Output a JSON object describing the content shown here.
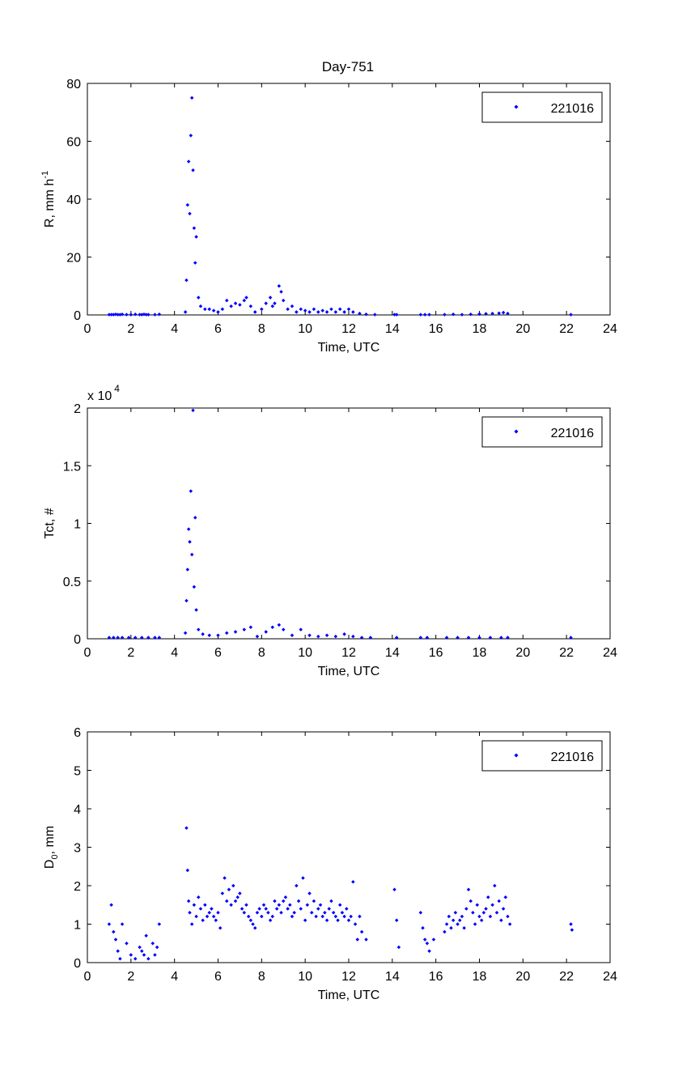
{
  "title": "Day-751",
  "marker_color": "#0000ff",
  "chart_data": [
    {
      "type": "scatter",
      "title": "Day-751",
      "xlabel": "Time, UTC",
      "ylabel_main": "R, mm h",
      "ylabel_sup": "-1",
      "xlim": [
        0,
        24
      ],
      "ylim": [
        0,
        80
      ],
      "xticks": [
        "0",
        "2",
        "4",
        "6",
        "8",
        "10",
        "12",
        "14",
        "16",
        "18",
        "20",
        "22",
        "24"
      ],
      "yticks": [
        "0",
        "20",
        "40",
        "60",
        "80"
      ],
      "legend": {
        "label": "221016",
        "position": "top-right"
      },
      "series": [
        {
          "name": "221016",
          "x": [
            1.0,
            1.1,
            1.2,
            1.3,
            1.4,
            1.5,
            1.6,
            1.8,
            2.0,
            2.2,
            2.4,
            2.5,
            2.6,
            2.7,
            2.8,
            3.1,
            3.3,
            4.5,
            4.55,
            4.6,
            4.65,
            4.7,
            4.75,
            4.8,
            4.85,
            4.9,
            4.95,
            5.0,
            5.1,
            5.2,
            5.4,
            5.6,
            5.8,
            6.0,
            6.2,
            6.4,
            6.6,
            6.8,
            7.0,
            7.2,
            7.3,
            7.5,
            7.7,
            8.0,
            8.2,
            8.4,
            8.5,
            8.6,
            8.8,
            8.9,
            9.0,
            9.2,
            9.4,
            9.6,
            9.8,
            10.0,
            10.2,
            10.4,
            10.6,
            10.8,
            11.0,
            11.2,
            11.4,
            11.6,
            11.8,
            12.0,
            12.2,
            12.5,
            12.8,
            13.2,
            14.1,
            14.2,
            15.3,
            15.5,
            15.7,
            16.4,
            16.8,
            17.2,
            17.6,
            18.0,
            18.3,
            18.6,
            18.9,
            19.1,
            19.3,
            22.2
          ],
          "y": [
            0.1,
            0.1,
            0.1,
            0.2,
            0.1,
            0.1,
            0.2,
            0.1,
            0.1,
            0.2,
            0.1,
            0.1,
            0.2,
            0.1,
            0.1,
            0.1,
            0.2,
            1.0,
            12.0,
            38.0,
            53.0,
            35.0,
            62.0,
            75.0,
            50.0,
            30.0,
            18.0,
            27.0,
            6.0,
            3.0,
            2.0,
            2.0,
            1.5,
            1.0,
            2.0,
            5.0,
            3.0,
            4.0,
            3.5,
            5.0,
            6.0,
            3.0,
            1.0,
            2.0,
            4.0,
            6.0,
            3.0,
            4.0,
            10.0,
            8.0,
            5.0,
            2.0,
            3.0,
            1.0,
            2.0,
            1.5,
            1.0,
            2.0,
            1.0,
            1.5,
            1.0,
            2.0,
            1.0,
            2.0,
            1.0,
            2.0,
            1.0,
            0.5,
            0.2,
            0.1,
            0.1,
            0.1,
            0.1,
            0.1,
            0.1,
            0.1,
            0.2,
            0.1,
            0.2,
            0.3,
            0.4,
            0.5,
            0.6,
            0.8,
            0.5,
            0.1
          ]
        }
      ]
    },
    {
      "type": "scatter",
      "exponent_label": "x 10",
      "exponent_power": "4",
      "xlabel": "Time, UTC",
      "ylabel": "Tct, #",
      "xlim": [
        0,
        24
      ],
      "ylim": [
        0,
        2
      ],
      "xticks": [
        "0",
        "2",
        "4",
        "6",
        "8",
        "10",
        "12",
        "14",
        "16",
        "18",
        "20",
        "22",
        "24"
      ],
      "yticks": [
        "0",
        "0.5",
        "1",
        "1.5",
        "2"
      ],
      "legend": {
        "label": "221016",
        "position": "top-right"
      },
      "series": [
        {
          "name": "221016",
          "x": [
            1.0,
            1.2,
            1.4,
            1.6,
            1.9,
            2.2,
            2.5,
            2.8,
            3.1,
            3.3,
            4.5,
            4.55,
            4.6,
            4.65,
            4.7,
            4.75,
            4.8,
            4.85,
            4.9,
            4.95,
            5.0,
            5.1,
            5.3,
            5.6,
            6.0,
            6.4,
            6.8,
            7.2,
            7.5,
            7.8,
            8.2,
            8.5,
            8.8,
            9.0,
            9.4,
            9.8,
            10.2,
            10.6,
            11.0,
            11.4,
            11.8,
            12.2,
            12.6,
            13.0,
            14.2,
            15.3,
            15.6,
            16.5,
            17.0,
            17.5,
            18.0,
            18.5,
            19.0,
            19.3,
            22.2
          ],
          "y": [
            0.01,
            0.01,
            0.01,
            0.01,
            0.01,
            0.01,
            0.01,
            0.01,
            0.01,
            0.01,
            0.05,
            0.33,
            0.6,
            0.95,
            0.84,
            1.28,
            0.73,
            1.98,
            0.45,
            1.05,
            0.25,
            0.08,
            0.04,
            0.03,
            0.03,
            0.05,
            0.06,
            0.08,
            0.1,
            0.02,
            0.06,
            0.1,
            0.12,
            0.08,
            0.03,
            0.08,
            0.03,
            0.02,
            0.03,
            0.02,
            0.04,
            0.02,
            0.01,
            0.01,
            0.01,
            0.01,
            0.01,
            0.01,
            0.01,
            0.01,
            0.01,
            0.01,
            0.01,
            0.01,
            0.01
          ]
        }
      ]
    },
    {
      "type": "scatter",
      "xlabel": "Time, UTC",
      "ylabel_main": "D",
      "ylabel_sub": "0",
      "ylabel_tail": ", mm",
      "xlim": [
        0,
        24
      ],
      "ylim": [
        0,
        6
      ],
      "xticks": [
        "0",
        "2",
        "4",
        "6",
        "8",
        "10",
        "12",
        "14",
        "16",
        "18",
        "20",
        "22",
        "24"
      ],
      "yticks": [
        "0",
        "1",
        "2",
        "3",
        "4",
        "5",
        "6"
      ],
      "legend": {
        "label": "221016",
        "position": "top-right"
      },
      "series": [
        {
          "name": "221016",
          "x": [
            1.0,
            1.1,
            1.2,
            1.3,
            1.4,
            1.5,
            1.6,
            1.8,
            2.0,
            2.2,
            2.4,
            2.5,
            2.6,
            2.7,
            2.8,
            3.0,
            3.1,
            3.2,
            3.3,
            4.55,
            4.6,
            4.65,
            4.7,
            4.8,
            4.9,
            5.0,
            5.1,
            5.2,
            5.3,
            5.4,
            5.5,
            5.6,
            5.7,
            5.8,
            5.9,
            6.0,
            6.1,
            6.2,
            6.3,
            6.4,
            6.5,
            6.6,
            6.7,
            6.8,
            6.9,
            7.0,
            7.1,
            7.2,
            7.3,
            7.4,
            7.5,
            7.6,
            7.7,
            7.8,
            7.9,
            8.0,
            8.1,
            8.2,
            8.3,
            8.4,
            8.5,
            8.6,
            8.7,
            8.8,
            8.9,
            9.0,
            9.1,
            9.2,
            9.3,
            9.4,
            9.5,
            9.6,
            9.7,
            9.8,
            9.9,
            10.0,
            10.1,
            10.2,
            10.3,
            10.4,
            10.5,
            10.6,
            10.7,
            10.8,
            10.9,
            11.0,
            11.1,
            11.2,
            11.3,
            11.4,
            11.5,
            11.6,
            11.7,
            11.8,
            11.9,
            12.0,
            12.1,
            12.2,
            12.3,
            12.4,
            12.5,
            12.6,
            12.8,
            14.1,
            14.2,
            14.3,
            15.3,
            15.4,
            15.5,
            15.6,
            15.7,
            15.9,
            16.4,
            16.5,
            16.6,
            16.7,
            16.8,
            16.9,
            17.0,
            17.1,
            17.2,
            17.3,
            17.4,
            17.5,
            17.6,
            17.7,
            17.8,
            17.9,
            18.0,
            18.1,
            18.2,
            18.3,
            18.4,
            18.5,
            18.6,
            18.7,
            18.8,
            18.9,
            19.0,
            19.1,
            19.2,
            19.3,
            19.4,
            22.2,
            22.25
          ],
          "y": [
            1.0,
            1.5,
            0.8,
            0.6,
            0.3,
            0.1,
            1.0,
            0.5,
            0.2,
            0.1,
            0.4,
            0.3,
            0.2,
            0.7,
            0.1,
            0.5,
            0.2,
            0.4,
            1.0,
            3.5,
            2.4,
            1.6,
            1.3,
            1.0,
            1.5,
            1.2,
            1.7,
            1.4,
            1.1,
            1.5,
            1.2,
            1.3,
            1.4,
            1.2,
            1.1,
            1.3,
            0.9,
            1.8,
            2.2,
            1.6,
            1.9,
            1.5,
            2.0,
            1.6,
            1.7,
            1.8,
            1.4,
            1.3,
            1.5,
            1.2,
            1.1,
            1.0,
            0.9,
            1.3,
            1.4,
            1.2,
            1.5,
            1.4,
            1.3,
            1.1,
            1.2,
            1.6,
            1.4,
            1.5,
            1.3,
            1.6,
            1.7,
            1.4,
            1.5,
            1.2,
            1.3,
            2.0,
            1.6,
            1.4,
            2.2,
            1.1,
            1.5,
            1.8,
            1.3,
            1.6,
            1.2,
            1.4,
            1.5,
            1.2,
            1.3,
            1.1,
            1.4,
            1.6,
            1.3,
            1.2,
            1.1,
            1.5,
            1.3,
            1.2,
            1.4,
            1.1,
            1.2,
            2.1,
            1.0,
            0.6,
            1.2,
            0.8,
            0.6,
            1.9,
            1.1,
            0.4,
            1.3,
            0.9,
            0.6,
            0.5,
            0.3,
            0.6,
            0.8,
            1.0,
            1.2,
            0.9,
            1.1,
            1.3,
            1.0,
            1.1,
            1.2,
            0.9,
            1.4,
            1.9,
            1.6,
            1.3,
            1.0,
            1.5,
            1.2,
            1.1,
            1.3,
            1.4,
            1.7,
            1.2,
            1.5,
            2.0,
            1.3,
            1.6,
            1.1,
            1.4,
            1.7,
            1.2,
            1.0,
            1.0,
            0.85
          ]
        }
      ]
    }
  ]
}
